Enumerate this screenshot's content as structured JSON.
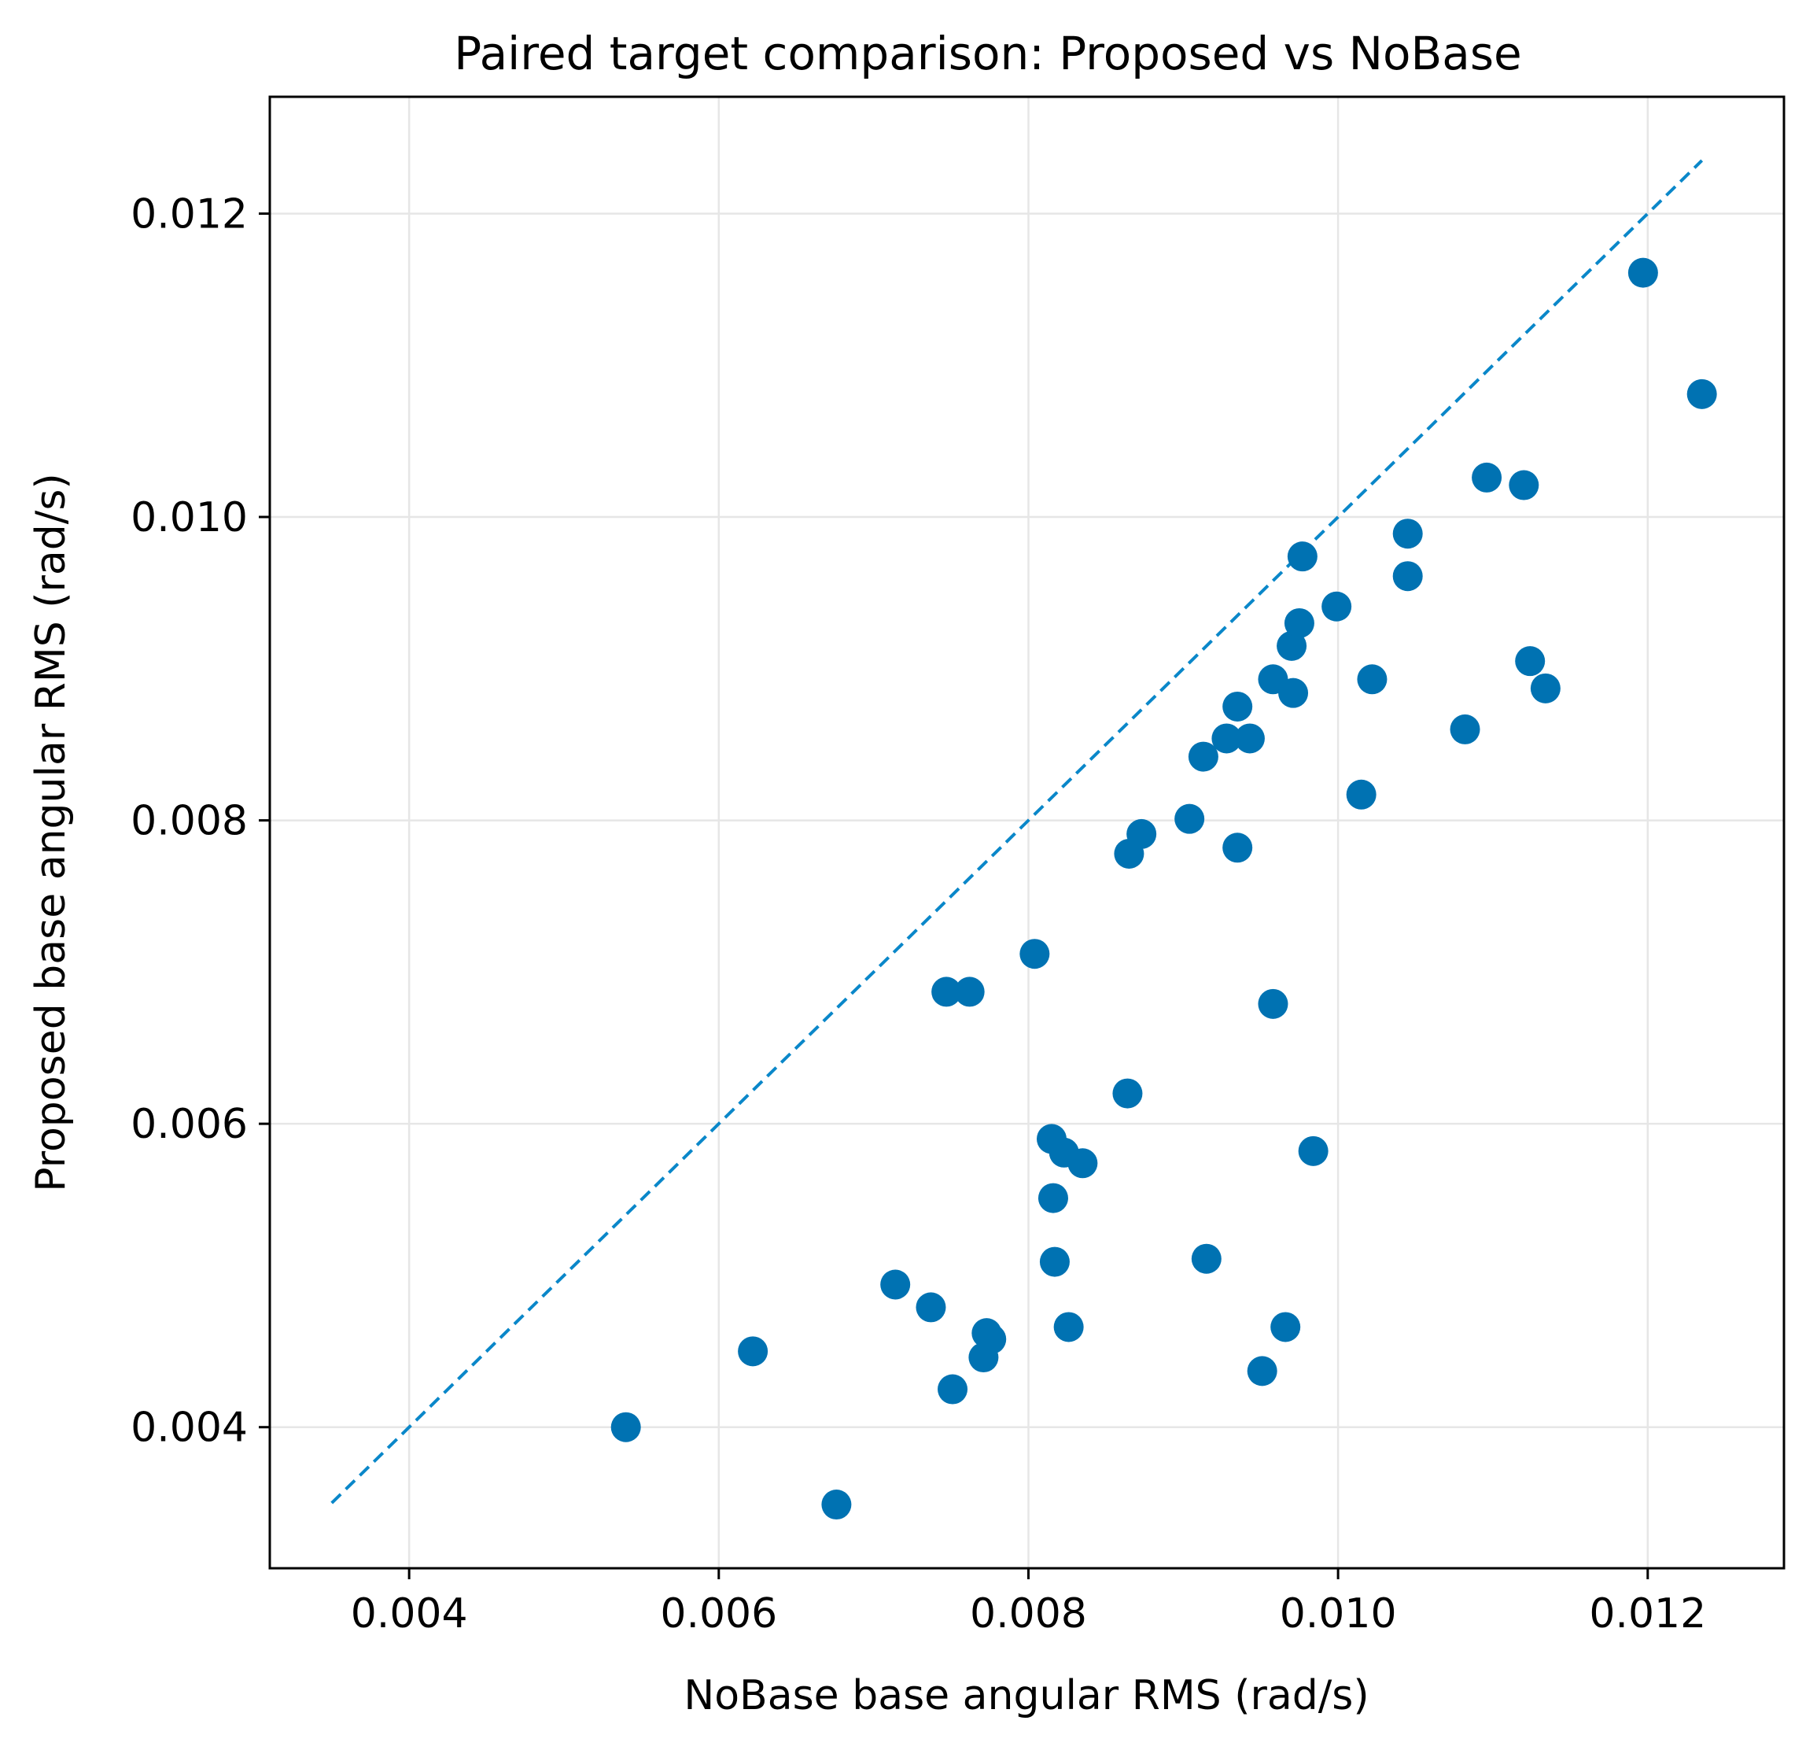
{
  "chart_data": {
    "type": "scatter",
    "title": "Paired target comparison: Proposed vs NoBase",
    "xlabel": "NoBase base angular RMS (rad/s)",
    "ylabel": "Proposed base angular RMS (rad/s)",
    "xlim": [
      0.0031,
      0.01288
    ],
    "ylim": [
      0.00307,
      0.01277
    ],
    "xticks": [
      0.004,
      0.006,
      0.008,
      0.01,
      0.012
    ],
    "yticks": [
      0.004,
      0.006,
      0.008,
      0.01,
      0.012
    ],
    "xtick_labels": [
      "0.004",
      "0.006",
      "0.008",
      "0.010",
      "0.012"
    ],
    "ytick_labels": [
      "0.004",
      "0.006",
      "0.008",
      "0.010",
      "0.012"
    ],
    "grid": true,
    "legend": "none",
    "reference_line": {
      "style": "dashed",
      "x": [
        0.0035,
        0.01235
      ],
      "y": [
        0.0035,
        0.01235
      ]
    },
    "marker_color": "#0072b2",
    "line_color": "#0a87c9",
    "x": [
      0.0054,
      0.00622,
      0.00676,
      0.00714,
      0.00737,
      0.00751,
      0.00771,
      0.00773,
      0.00776,
      0.00747,
      0.00762,
      0.00804,
      0.00815,
      0.00816,
      0.00817,
      0.00823,
      0.00835,
      0.00826,
      0.00864,
      0.00865,
      0.00873,
      0.00904,
      0.00913,
      0.00928,
      0.00935,
      0.00943,
      0.00935,
      0.00915,
      0.00951,
      0.00958,
      0.00966,
      0.00958,
      0.0097,
      0.00971,
      0.00975,
      0.00977,
      0.00984,
      0.00999,
      0.01015,
      0.01022,
      0.01045,
      0.01045,
      0.01082,
      0.01096,
      0.0112,
      0.01124,
      0.01134,
      0.01197,
      0.01235
    ],
    "y": [
      0.004,
      0.0045,
      0.00349,
      0.00494,
      0.00479,
      0.00425,
      0.00446,
      0.00462,
      0.00458,
      0.00687,
      0.00687,
      0.00712,
      0.0059,
      0.00551,
      0.00509,
      0.00581,
      0.00574,
      0.00466,
      0.0062,
      0.00778,
      0.00791,
      0.00801,
      0.00842,
      0.00854,
      0.00875,
      0.00854,
      0.00782,
      0.00511,
      0.00437,
      0.00679,
      0.00466,
      0.00893,
      0.00915,
      0.00884,
      0.0093,
      0.00974,
      0.00582,
      0.00941,
      0.00817,
      0.00893,
      0.00989,
      0.00961,
      0.0086,
      0.01026,
      0.01021,
      0.00905,
      0.00887,
      0.01161,
      0.01081
    ]
  }
}
